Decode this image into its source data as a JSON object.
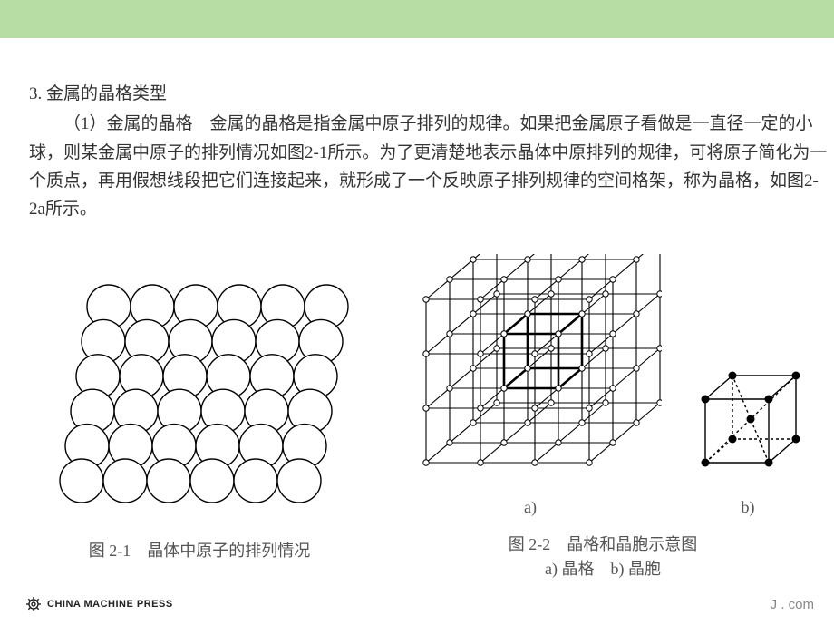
{
  "colors": {
    "header_bg": "#b7dca4",
    "text": "#333333",
    "caption": "#555555",
    "stroke": "#000000",
    "fill_white": "#ffffff"
  },
  "heading": "3. 金属的晶格类型",
  "paragraph": "（1）金属的晶格　金属的晶格是指金属中原子排列的规律。如果把金属原子看做是一直径一定的小球，则某金属中原子的排列情况如图2-1所示。为了更清楚地表示晶体中原排列的规律，可将原子简化为一个质点，再用假想线段把它们连接起来，就形成了一个反映原子排列规律的空间格架，称为晶格，如图2-2a所示。",
  "fig1": {
    "caption": "图 2-1　晶体中原子的排列情况",
    "rows": 6,
    "cols": 6,
    "radius": 24,
    "dx_row": 4,
    "dy_row": -9,
    "stroke_width": 1.4
  },
  "fig2": {
    "caption_line1": "图 2-2　晶格和晶胞示意图",
    "caption_line2": "a) 晶格　b) 晶胞",
    "label_a": "a)",
    "label_b": "b)",
    "lattice": {
      "n": 3,
      "step": 60,
      "depth_dx": 26,
      "depth_dy": -22,
      "node_r": 3.2,
      "stroke_width": 1.1,
      "bold_width": 2.6
    },
    "cell": {
      "size": 70,
      "depth_dx": 30,
      "depth_dy": -26,
      "node_r": 4.5,
      "stroke_width": 1.4
    }
  },
  "footer": {
    "logo_text": "CHINA MACHINE PRESS",
    "right_text": "J . com"
  }
}
